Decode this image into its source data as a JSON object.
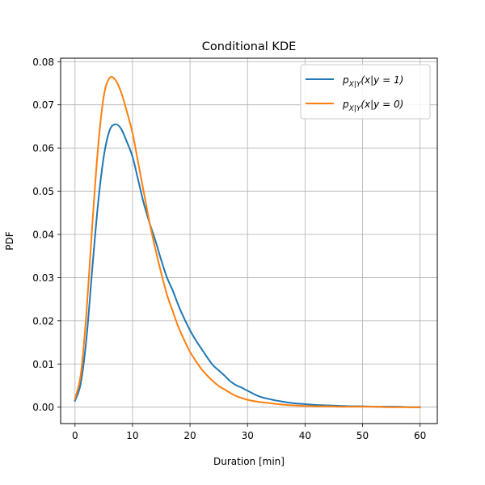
{
  "chart_data": {
    "type": "line",
    "title": "Conditional KDE",
    "xlabel": "Duration [min]",
    "ylabel": "PDF",
    "xlim": [
      -2.5,
      63
    ],
    "ylim": [
      -0.0038,
      0.0808
    ],
    "xticks": [
      0,
      10,
      20,
      30,
      40,
      50,
      60
    ],
    "yticks": [
      0.0,
      0.01,
      0.02,
      0.03,
      0.04,
      0.05,
      0.06,
      0.07,
      0.08
    ],
    "xtick_labels": [
      "0",
      "10",
      "20",
      "30",
      "40",
      "50",
      "60"
    ],
    "ytick_labels": [
      "0.00",
      "0.01",
      "0.02",
      "0.03",
      "0.04",
      "0.05",
      "0.06",
      "0.07",
      "0.08"
    ],
    "grid": true,
    "legend_position": "top-right",
    "legend_labels": {
      "s1": {
        "main": "p",
        "sub": "X|Y",
        "expr": "(x|y = 1)"
      },
      "s2": {
        "main": "p",
        "sub": "X|Y",
        "expr": "(x|y = 0)"
      }
    },
    "series": [
      {
        "color": "#1f77b4",
        "x": [
          0,
          1,
          2,
          3,
          4,
          5,
          6,
          7,
          8,
          9,
          10,
          11,
          12,
          13,
          14,
          15,
          16,
          17,
          18,
          19,
          20,
          21,
          22,
          23,
          24,
          25,
          26,
          27,
          28,
          29,
          30,
          32,
          34,
          36,
          38,
          40,
          42,
          44,
          46,
          48,
          50,
          52,
          54,
          56,
          58,
          60
        ],
        "y": [
          0.0015,
          0.0055,
          0.016,
          0.032,
          0.047,
          0.058,
          0.064,
          0.0655,
          0.0645,
          0.0615,
          0.058,
          0.0525,
          0.047,
          0.0425,
          0.0385,
          0.034,
          0.03,
          0.027,
          0.0235,
          0.0205,
          0.0178,
          0.0155,
          0.0135,
          0.0115,
          0.0097,
          0.0085,
          0.0073,
          0.006,
          0.0051,
          0.0045,
          0.0038,
          0.0025,
          0.0018,
          0.0013,
          0.0009,
          0.0007,
          0.0005,
          0.0004,
          0.0003,
          0.0002,
          0.0002,
          0.0001,
          0.0001,
          0.0001,
          0.0,
          0.0
        ]
      },
      {
        "color": "#ff7f0e",
        "x": [
          0,
          1,
          2,
          3,
          4,
          5,
          6,
          7,
          8,
          9,
          10,
          11,
          12,
          13,
          14,
          15,
          16,
          17,
          18,
          19,
          20,
          21,
          22,
          23,
          24,
          25,
          26,
          27,
          28,
          29,
          30,
          32,
          34,
          36,
          38,
          40,
          42,
          44,
          46,
          48,
          50,
          52,
          54,
          56,
          58,
          60
        ],
        "y": [
          0.002,
          0.0075,
          0.022,
          0.042,
          0.06,
          0.072,
          0.0762,
          0.0758,
          0.073,
          0.0685,
          0.0635,
          0.0565,
          0.0495,
          0.0425,
          0.0365,
          0.031,
          0.026,
          0.0222,
          0.0185,
          0.0155,
          0.0128,
          0.0107,
          0.0088,
          0.0073,
          0.006,
          0.0049,
          0.0041,
          0.0033,
          0.0026,
          0.0021,
          0.0017,
          0.0012,
          0.0009,
          0.0006,
          0.0004,
          0.0003,
          0.0002,
          0.0002,
          0.0001,
          0.0001,
          0.0001,
          0.0001,
          0.0,
          0.0,
          0.0,
          0.0
        ]
      }
    ]
  }
}
